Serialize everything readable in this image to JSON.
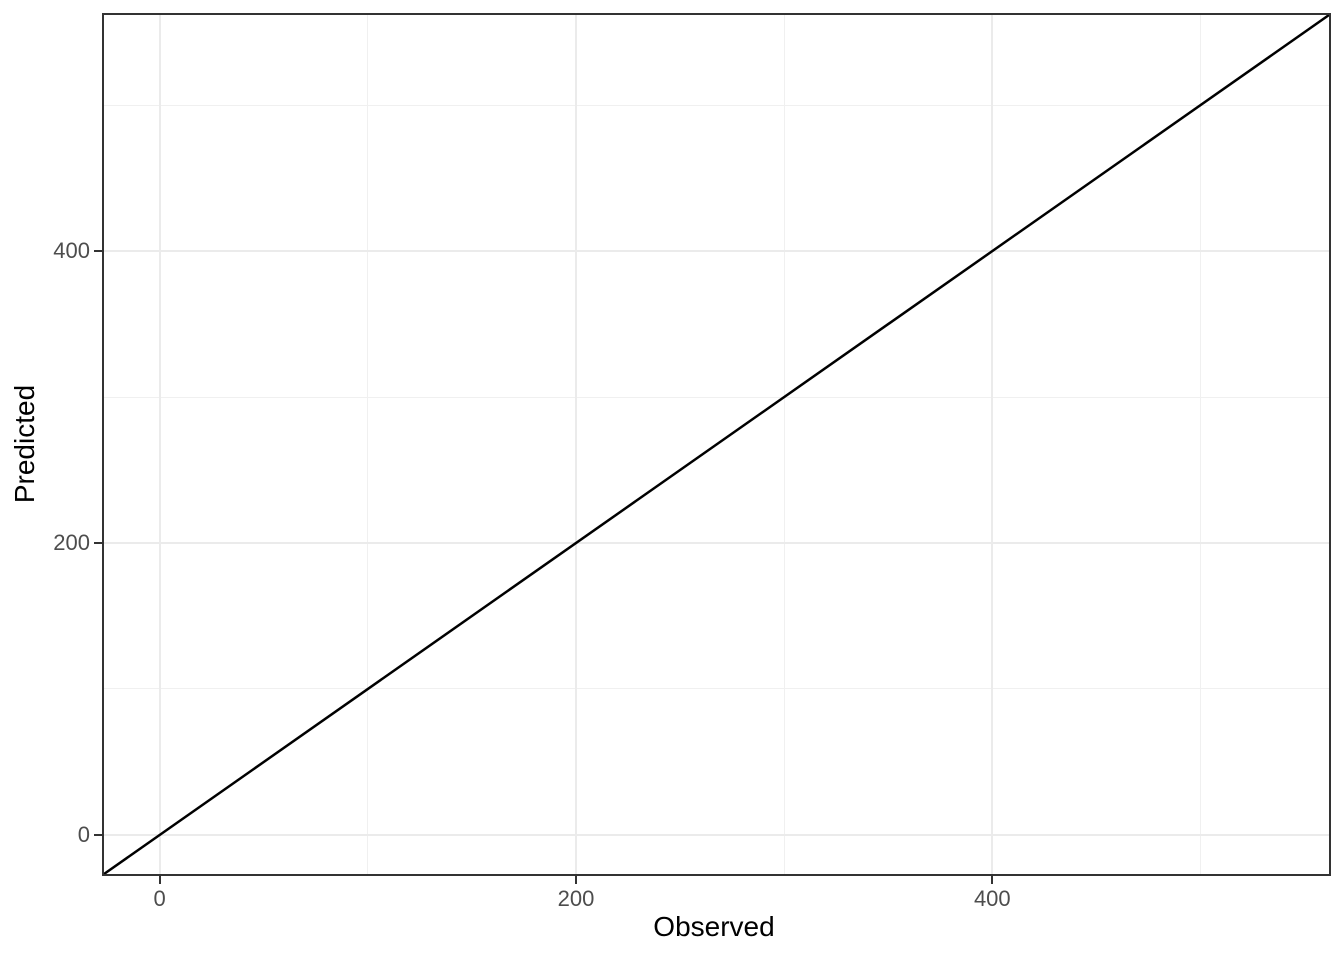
{
  "chart_data": {
    "type": "line",
    "title": "",
    "xlabel": "Observed",
    "ylabel": "Predicted",
    "xlim": [
      -26.75,
      561.75
    ],
    "ylim": [
      -26.75,
      561.75
    ],
    "grid": "on",
    "legend": "none",
    "x_ticks": {
      "values": [
        0,
        200,
        400
      ],
      "labels": [
        "0",
        "200",
        "400"
      ]
    },
    "y_ticks": {
      "values": [
        0,
        200,
        400
      ],
      "labels": [
        "0",
        "200",
        "400"
      ]
    },
    "x_minor_gridlines": [
      100,
      300,
      500
    ],
    "y_minor_gridlines": [
      100,
      300,
      500
    ],
    "series": [
      {
        "name": "identity line",
        "equation": "y = x",
        "color": "#000000",
        "stroke_width": 2.5,
        "points": [
          [
            -26.75,
            -26.75
          ],
          [
            561.75,
            561.75
          ]
        ]
      }
    ],
    "colors": {
      "background": "#ffffff",
      "panel_background": "#ffffff",
      "panel_border": "#333333",
      "grid_major": "#ebebeb",
      "grid_minor": "#f0f0f0",
      "tick": "#333333",
      "tick_label": "#4d4d4d",
      "axis_title": "#000000"
    }
  }
}
